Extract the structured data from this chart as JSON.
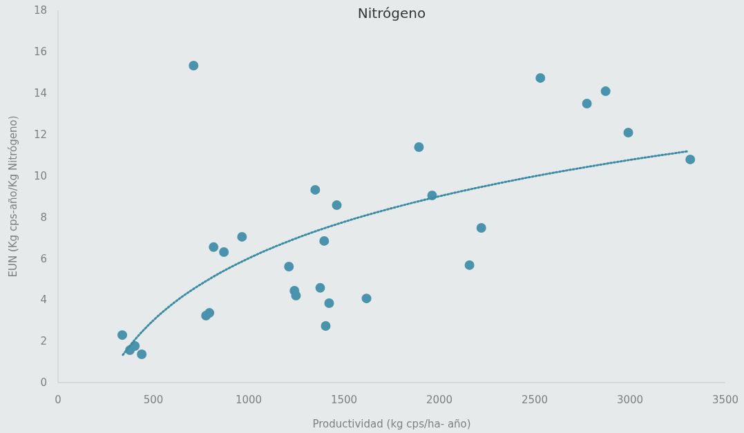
{
  "chart_data": {
    "type": "scatter",
    "title": "Nitrógeno",
    "xlabel": "Productividad (kg cps/ha- año)",
    "ylabel": "EUN (Kg cps-año/Kg Nitrógeno)",
    "xlim": [
      0,
      3500
    ],
    "xticks": [
      0,
      500,
      1000,
      1500,
      2000,
      2500,
      3000,
      3500
    ],
    "ylim": [
      0,
      18
    ],
    "yticks": [
      0,
      2,
      4,
      6,
      8,
      10,
      12,
      14,
      16,
      18
    ],
    "grid": false,
    "series": [
      {
        "color": "#4a93ad",
        "marker": "circle",
        "x": [
          337,
          377,
          403,
          439,
          711,
          776,
          794,
          816,
          870,
          965,
          1211,
          1240,
          1248,
          1349,
          1375,
          1396,
          1404,
          1422,
          1462,
          1618,
          1893,
          1962,
          2158,
          2220,
          2530,
          2774,
          2872,
          2991,
          3316
        ],
        "values": [
          2.3,
          1.57,
          1.77,
          1.37,
          15.33,
          3.24,
          3.37,
          6.55,
          6.31,
          7.05,
          5.61,
          4.44,
          4.21,
          9.32,
          4.58,
          6.85,
          2.74,
          3.84,
          8.58,
          4.07,
          11.39,
          9.05,
          5.68,
          7.48,
          14.73,
          13.49,
          14.09,
          12.09,
          10.79
        ]
      },
      {
        "type": "line",
        "color": "#3a8ca4",
        "line_style": "dotted",
        "x": [
          340,
          400,
          500,
          600,
          800,
          1000,
          1250,
          1500,
          1750,
          2000,
          2250,
          2500,
          2750,
          3000,
          3300
        ],
        "values": [
          1.34,
          2.04,
          3.01,
          3.8,
          5.04,
          6.01,
          6.98,
          7.77,
          8.43,
          9.01,
          9.52,
          9.98,
          10.39,
          10.77,
          11.18
        ]
      }
    ]
  }
}
